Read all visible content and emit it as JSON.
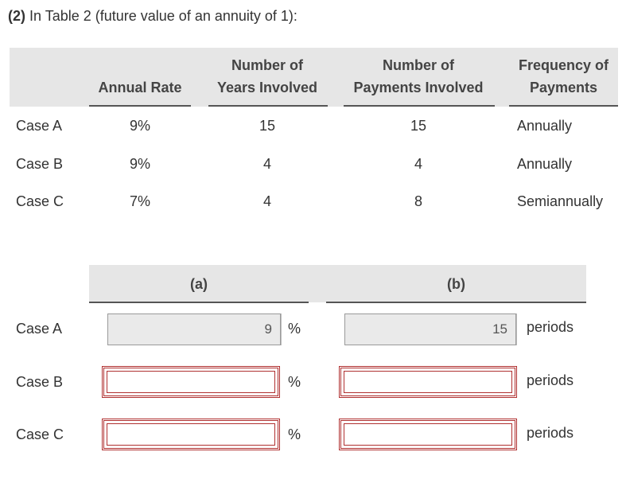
{
  "title": {
    "prefix": "(2)",
    "text": "In Table 2 (future value of an annuity of 1):"
  },
  "table": {
    "headers": {
      "annual_rate": "Annual Rate",
      "years_line1": "Number of",
      "years_line2": "Years Involved",
      "payments_line1": "Number of",
      "payments_line2": "Payments Involved",
      "freq_line1": "Frequency of",
      "freq_line2": "Payments"
    },
    "rows": [
      {
        "case": "Case A",
        "rate": "9%",
        "years": "15",
        "payments": "15",
        "frequency": "Annually"
      },
      {
        "case": "Case B",
        "rate": "9%",
        "years": "4",
        "payments": "4",
        "frequency": "Annually"
      },
      {
        "case": "Case C",
        "rate": "7%",
        "years": "4",
        "payments": "8",
        "frequency": "Semiannually"
      }
    ]
  },
  "answers": {
    "col_a_label": "(a)",
    "col_b_label": "(b)",
    "rows": [
      {
        "case": "Case A",
        "a_value": "9",
        "a_unit": "%",
        "b_value": "15",
        "b_unit": "periods"
      },
      {
        "case": "Case B",
        "a_value": "",
        "a_unit": "%",
        "b_value": "",
        "b_unit": "periods"
      },
      {
        "case": "Case C",
        "a_value": "",
        "a_unit": "%",
        "b_value": "",
        "b_unit": "periods"
      }
    ]
  }
}
